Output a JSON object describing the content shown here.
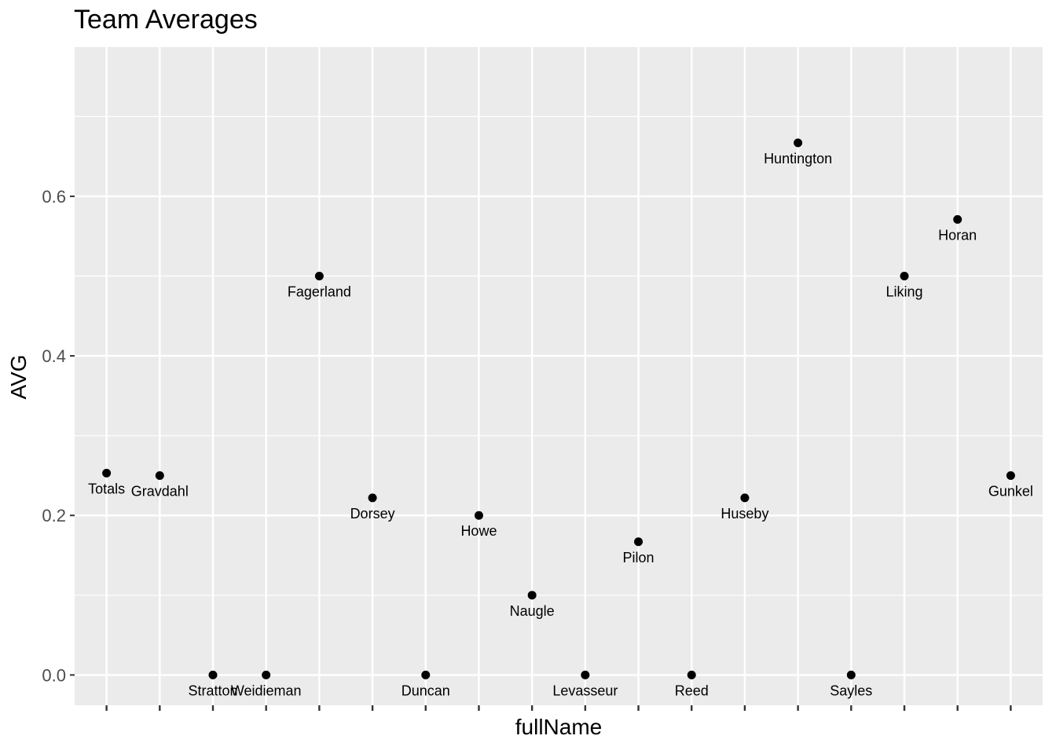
{
  "chart_data": {
    "type": "scatter",
    "title": "Team Averages",
    "xlabel": "fullName",
    "ylabel": "AVG",
    "ylim": [
      -0.038,
      0.787
    ],
    "y_ticks": [
      0.0,
      0.2,
      0.4,
      0.6
    ],
    "y_tick_labels": [
      "0.0",
      "0.2",
      "0.4",
      "0.6"
    ],
    "x_tick_labels_shown": false,
    "grid": true,
    "points": [
      {
        "x": "Totals",
        "y": 0.253
      },
      {
        "x": "Gravdahl",
        "y": 0.25
      },
      {
        "x": "Stratton",
        "y": 0.0
      },
      {
        "x": "Weidieman",
        "y": 0.0
      },
      {
        "x": "Fagerland",
        "y": 0.5
      },
      {
        "x": "Dorsey",
        "y": 0.222
      },
      {
        "x": "Duncan",
        "y": 0.0
      },
      {
        "x": "Howe",
        "y": 0.2
      },
      {
        "x": "Naugle",
        "y": 0.1
      },
      {
        "x": "Levasseur",
        "y": 0.0
      },
      {
        "x": "Pilon",
        "y": 0.167
      },
      {
        "x": "Reed",
        "y": 0.0
      },
      {
        "x": "Huseby",
        "y": 0.222
      },
      {
        "x": "Huntington",
        "y": 0.667
      },
      {
        "x": "Sayles",
        "y": 0.0
      },
      {
        "x": "Liking",
        "y": 0.5
      },
      {
        "x": "Horan",
        "y": 0.571
      },
      {
        "x": "Gunkel",
        "y": 0.25
      }
    ],
    "colors": {
      "panel_bg": "#ebebeb",
      "grid": "#ffffff",
      "point": "#000000",
      "tick": "#333333",
      "tick_text": "#4d4d4d"
    }
  }
}
